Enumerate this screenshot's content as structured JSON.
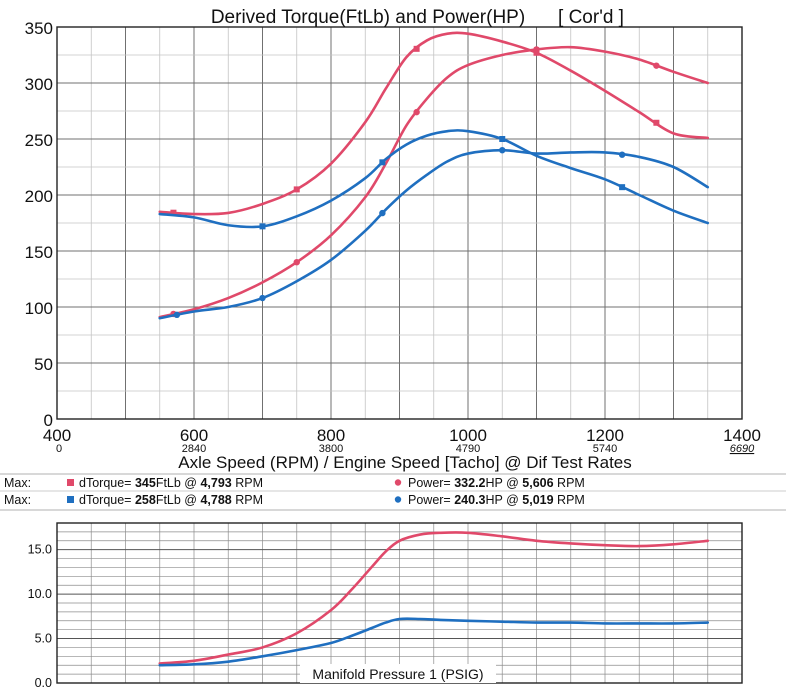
{
  "chart_data": [
    {
      "type": "line",
      "title": "Derived Torque(FtLb) and Power(HP)",
      "title_note": "[ Cor'd ]",
      "xlabel": "Axle Speed (RPM) / Engine Speed [Tacho] @ Dif Test Rates",
      "ylabel": "",
      "xlim": [
        400,
        1400
      ],
      "ylim": [
        0,
        350
      ],
      "grid": true,
      "x_ticks": [
        "400",
        "600",
        "800",
        "1000",
        "1200",
        "1400"
      ],
      "y_ticks": [
        "0",
        "50",
        "100",
        "150",
        "200",
        "250",
        "300",
        "350"
      ],
      "engine_ticks": [
        "0",
        "2840",
        "3800",
        "4790",
        "5740",
        "6690"
      ],
      "series": [
        {
          "name": "dTorque (red)",
          "color": "#e0496a",
          "x": [
            550,
            600,
            650,
            700,
            750,
            800,
            850,
            880,
            910,
            940,
            970,
            1000,
            1050,
            1100,
            1150,
            1200,
            1250,
            1300,
            1350
          ],
          "y": [
            185,
            183,
            184,
            192,
            205,
            228,
            265,
            295,
            323,
            338,
            344,
            344,
            337,
            327,
            311,
            293,
            274,
            255,
            251
          ],
          "markers_x": [
            570,
            750,
            925,
            1100,
            1275
          ]
        },
        {
          "name": "Power (red)",
          "color": "#e0496a",
          "x": [
            550,
            600,
            650,
            700,
            750,
            800,
            850,
            880,
            910,
            940,
            970,
            1000,
            1050,
            1100,
            1150,
            1200,
            1250,
            1300,
            1350
          ],
          "y": [
            91,
            98,
            108,
            122,
            140,
            164,
            198,
            228,
            262,
            286,
            305,
            316,
            325,
            330,
            332,
            328,
            321,
            310,
            300
          ],
          "markers_x": [
            570,
            750,
            925,
            1100,
            1275
          ]
        },
        {
          "name": "dTorque (blue)",
          "color": "#1f6fc0",
          "x": [
            550,
            600,
            650,
            700,
            750,
            800,
            850,
            880,
            910,
            940,
            970,
            1000,
            1050,
            1100,
            1150,
            1200,
            1250,
            1300,
            1350
          ],
          "y": [
            183,
            180,
            173,
            172,
            181,
            195,
            215,
            232,
            245,
            253,
            257,
            257,
            250,
            235,
            224,
            214,
            200,
            186,
            175
          ],
          "markers_x": [
            700,
            875,
            1050,
            1225
          ]
        },
        {
          "name": "Power (blue)",
          "color": "#1f6fc0",
          "x": [
            550,
            600,
            650,
            700,
            750,
            800,
            850,
            880,
            910,
            940,
            970,
            1000,
            1050,
            1100,
            1150,
            1200,
            1250,
            1300,
            1350
          ],
          "y": [
            90,
            96,
            100,
            108,
            123,
            142,
            168,
            187,
            204,
            218,
            230,
            237,
            240,
            237,
            238,
            238,
            234,
            225,
            207
          ],
          "markers_x": [
            575,
            700,
            875,
            1050,
            1225
          ]
        }
      ]
    },
    {
      "type": "line",
      "title": "Manifold Pressure 1 (PSIG)",
      "xlim": [
        400,
        1400
      ],
      "ylim": [
        0,
        18
      ],
      "grid": true,
      "y_ticks": [
        "0.0",
        "5.0",
        "10.0",
        "15.0"
      ],
      "series": [
        {
          "name": "Manifold Pressure (red)",
          "color": "#e0496a",
          "x": [
            550,
            600,
            650,
            700,
            750,
            800,
            830,
            860,
            880,
            900,
            930,
            960,
            1000,
            1050,
            1100,
            1150,
            1200,
            1250,
            1300,
            1350
          ],
          "y": [
            2.2,
            2.5,
            3.2,
            4.0,
            5.6,
            8.2,
            10.5,
            13.1,
            14.8,
            16.0,
            16.7,
            16.9,
            16.9,
            16.5,
            16.0,
            15.7,
            15.5,
            15.4,
            15.6,
            16.0
          ]
        },
        {
          "name": "Manifold Pressure (blue)",
          "color": "#1f6fc0",
          "x": [
            550,
            600,
            650,
            700,
            750,
            800,
            830,
            860,
            880,
            900,
            930,
            960,
            1000,
            1050,
            1100,
            1150,
            1200,
            1250,
            1300,
            1350
          ],
          "y": [
            2.0,
            2.1,
            2.4,
            3.0,
            3.7,
            4.5,
            5.3,
            6.2,
            6.8,
            7.2,
            7.2,
            7.1,
            7.0,
            6.9,
            6.8,
            6.8,
            6.7,
            6.7,
            6.7,
            6.8
          ]
        }
      ]
    }
  ],
  "summary": [
    {
      "prefix": "Max:",
      "torque_label": "dTorque= ",
      "torque_value": "345",
      "torque_unit": "FtLb @ ",
      "torque_rpm": "4,793",
      "torque_rpm_unit": " RPM",
      "power_label": "Power= ",
      "power_value": "332.2",
      "power_unit": "HP @ ",
      "power_rpm": "5,606",
      "power_rpm_unit": " RPM"
    },
    {
      "prefix": "Max:",
      "torque_label": "dTorque= ",
      "torque_value": "258",
      "torque_unit": "FtLb @ ",
      "torque_rpm": "4,788",
      "torque_rpm_unit": " RPM",
      "power_label": "Power= ",
      "power_value": "240.3",
      "power_unit": "HP @ ",
      "power_rpm": "5,019",
      "power_rpm_unit": " RPM"
    }
  ]
}
